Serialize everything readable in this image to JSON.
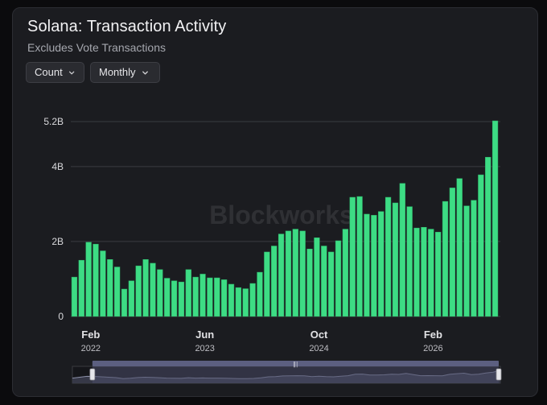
{
  "header": {
    "title": "Solana: Transaction Activity",
    "subtitle": "Excludes Vote Transactions"
  },
  "controls": {
    "metric_label": "Count",
    "interval_label": "Monthly"
  },
  "watermark": "Blockworks",
  "colors": {
    "bar": "#3ddc84",
    "bar_edge": "#2fb36a",
    "grid": "#3a3b40",
    "text": "#d9d9dc",
    "navigator_fill": "#4a4c68",
    "navigator_line": "#8c90a8"
  },
  "chart_data": {
    "type": "bar",
    "title": "Solana: Transaction Activity",
    "subtitle": "Excludes Vote Transactions",
    "unit": "transactions (billions)",
    "ylim": [
      0,
      5.2
    ],
    "y_ticks": [
      {
        "value": 0,
        "label": "0"
      },
      {
        "value": 2,
        "label": "2B"
      },
      {
        "value": 4,
        "label": "4B"
      },
      {
        "value": 5.2,
        "label": "5.2B"
      }
    ],
    "x_ticks": [
      {
        "index": 2,
        "month": "Feb",
        "year": "2022"
      },
      {
        "index": 18,
        "month": "Jun",
        "year": "2023"
      },
      {
        "index": 34,
        "month": "Oct",
        "year": "2024"
      },
      {
        "index": 50,
        "month": "Feb",
        "year": "2026"
      }
    ],
    "grid": true,
    "values": [
      1.05,
      1.5,
      1.98,
      1.93,
      1.75,
      1.52,
      1.32,
      0.73,
      0.95,
      1.35,
      1.52,
      1.42,
      1.25,
      1.02,
      0.95,
      0.92,
      1.25,
      1.05,
      1.13,
      1.03,
      1.03,
      0.98,
      0.86,
      0.77,
      0.74,
      0.88,
      1.18,
      1.72,
      1.88,
      2.2,
      2.28,
      2.33,
      2.28,
      1.8,
      2.1,
      1.88,
      1.72,
      2.02,
      2.33,
      3.18,
      3.2,
      2.73,
      2.7,
      2.8,
      3.18,
      3.03,
      3.55,
      2.93,
      2.36,
      2.38,
      2.33,
      2.25,
      3.07,
      3.43,
      3.68,
      2.95,
      3.1,
      3.78,
      4.25,
      5.22
    ],
    "navigator": {
      "selected_range_index": [
        18,
        59
      ]
    }
  }
}
